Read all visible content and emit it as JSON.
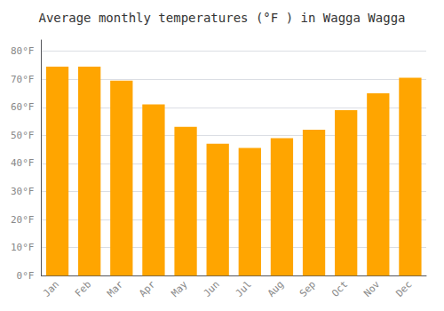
{
  "chart_data": {
    "type": "bar",
    "title": "Average monthly temperatures (°F ) in Wagga Wagga",
    "categories": [
      "Jan",
      "Feb",
      "Mar",
      "Apr",
      "May",
      "Jun",
      "Jul",
      "Aug",
      "Sep",
      "Oct",
      "Nov",
      "Dec"
    ],
    "values": [
      74.5,
      74.5,
      69.5,
      61,
      53,
      47,
      45.5,
      49,
      52,
      59,
      65,
      70.5
    ],
    "color": "#FFA500",
    "ylim": [
      0,
      84
    ],
    "yticks": [
      {
        "value": 0,
        "label": "0°F"
      },
      {
        "value": 10,
        "label": "10°F"
      },
      {
        "value": 20,
        "label": "20°F"
      },
      {
        "value": 30,
        "label": "30°F"
      },
      {
        "value": 40,
        "label": "40°F"
      },
      {
        "value": 50,
        "label": "50°F"
      },
      {
        "value": 60,
        "label": "60°F"
      },
      {
        "value": 70,
        "label": "70°F"
      },
      {
        "value": 80,
        "label": "80°F"
      }
    ],
    "grid": true
  }
}
